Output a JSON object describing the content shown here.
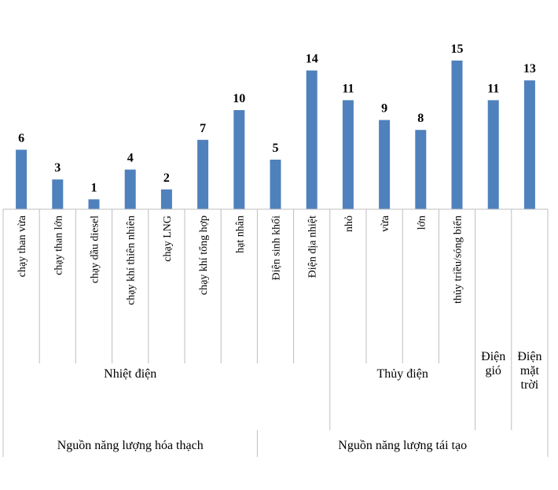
{
  "chart_data": {
    "type": "bar",
    "title": "",
    "xlabel": "",
    "ylabel": "",
    "ylim": [
      0,
      15
    ],
    "bar_color": "#4F81BD",
    "categories": [
      "chạy than vừa",
      "chạy than lớn",
      "chạy dầu diesel",
      "chạy khí thiên nhiên",
      "chạy LNG",
      "chạy khí tổng hợp",
      "hạt nhân",
      "Điện sinh khối",
      "Điện địa nhiệt",
      "nhỏ",
      "vừa",
      "lớn",
      "thủy triều/sóng biển",
      "",
      ""
    ],
    "values": [
      6,
      3,
      1,
      4,
      2,
      7,
      10,
      5,
      14,
      11,
      9,
      8,
      15,
      11,
      13
    ],
    "groups": [
      {
        "label": "Nhiệt điện",
        "start": 0,
        "end": 6,
        "lines": [
          "Nhiệt điện"
        ]
      },
      {
        "label": "Thủy điện",
        "start": 9,
        "end": 12,
        "lines": [
          "Thủy điện"
        ]
      },
      {
        "label": "Điện gió",
        "start": 13,
        "end": 13,
        "lines": [
          "Điện",
          "gió"
        ]
      },
      {
        "label": "Điện mặt trời",
        "start": 14,
        "end": 14,
        "lines": [
          "Điện",
          "mặt",
          "trời"
        ]
      }
    ],
    "supergroups": [
      {
        "label": "Nguồn năng lượng hóa thạch",
        "start": 0,
        "end": 6
      },
      {
        "label": "Nguồn năng lượng tái tạo",
        "start": 7,
        "end": 14
      }
    ]
  }
}
